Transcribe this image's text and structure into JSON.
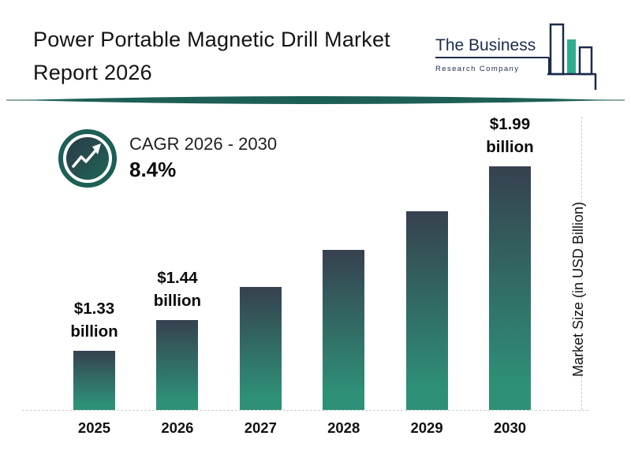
{
  "header": {
    "title_lines": [
      "Power Portable Magnetic Drill Market",
      "Report 2026"
    ],
    "logo": {
      "name": "The Business",
      "subtitle": "Research Company"
    }
  },
  "chart_data": {
    "type": "bar",
    "title": "Power Portable Magnetic Drill Market Report 2026",
    "categories": [
      "2025",
      "2026",
      "2027",
      "2028",
      "2029",
      "2030"
    ],
    "values": [
      1.33,
      1.44,
      1.56,
      1.69,
      1.83,
      1.99
    ],
    "unit": "USD Billion",
    "data_labels": [
      "$1.33 billion",
      "$1.44 billion",
      null,
      null,
      null,
      "$1.99 billion"
    ],
    "ylabel": "Market Size (in USD Billion)",
    "xlabel": "",
    "ylim": [
      1.12,
      2.02
    ],
    "grid": false,
    "legend": false,
    "cagr_label": "CAGR 2026 - 2030",
    "cagr_value": "8.4%"
  },
  "colors": {
    "bar_gradient_top": "#36414f",
    "bar_gradient_bottom": "#2e9077",
    "accent_teal": "#1d5f55",
    "logo_navy": "#1b2b4b",
    "logo_green": "#2fae8c"
  }
}
